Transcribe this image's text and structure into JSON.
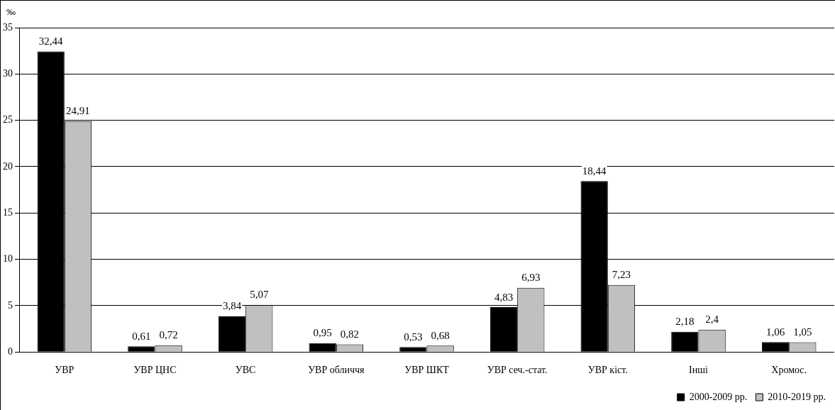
{
  "chart_data": {
    "type": "bar",
    "ylabel": "‰",
    "categories": [
      "УВР",
      "УВР ЦНС",
      "УВС",
      "УВР обличчя",
      "УВР ШКТ",
      "УВР сеч.-стат.",
      "УВР кіст.",
      "Інші",
      "Хромос."
    ],
    "series": [
      {
        "name": "2000-2009 рр.",
        "color": "#000000",
        "values": [
          32.44,
          0.61,
          3.84,
          0.95,
          0.53,
          4.83,
          18.44,
          2.18,
          1.06
        ],
        "value_labels": [
          "32,44",
          "0,61",
          "3,84",
          "0,95",
          "0,53",
          "4,83",
          "18,44",
          "2,18",
          "1,06"
        ]
      },
      {
        "name": "2010-2019 рр.",
        "color": "#c0c0c0",
        "values": [
          24.91,
          0.72,
          5.07,
          0.82,
          0.68,
          6.93,
          7.23,
          2.4,
          1.05
        ],
        "value_labels": [
          "24,91",
          "0,72",
          "5,07",
          "0,82",
          "0,68",
          "6,93",
          "7,23",
          "2,4",
          "1,05"
        ]
      }
    ],
    "ylim": [
      0,
      35
    ],
    "yticks": [
      0,
      5,
      10,
      15,
      20,
      25,
      30,
      35
    ],
    "grid": "y",
    "legend": "bottom right"
  }
}
